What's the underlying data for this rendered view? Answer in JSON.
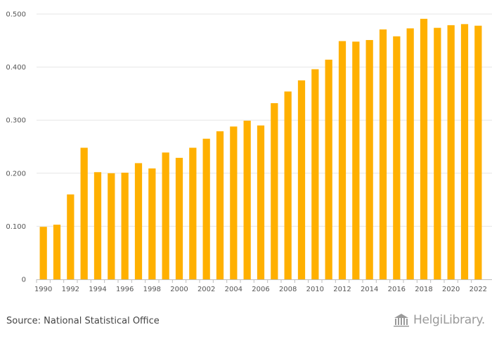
{
  "chart_data": {
    "type": "bar",
    "categories": [
      "1990",
      "1991",
      "1992",
      "1993",
      "1994",
      "1995",
      "1996",
      "1997",
      "1998",
      "1999",
      "2000",
      "2001",
      "2002",
      "2003",
      "2004",
      "2005",
      "2006",
      "2007",
      "2008",
      "2009",
      "2010",
      "2011",
      "2012",
      "2013",
      "2014",
      "2015",
      "2016",
      "2017",
      "2018",
      "2019",
      "2020",
      "2021",
      "2022"
    ],
    "x_tick_labels": [
      "1990",
      "1992",
      "1994",
      "1996",
      "1998",
      "2000",
      "2002",
      "2004",
      "2006",
      "2008",
      "2010",
      "2012",
      "2014",
      "2016",
      "2018",
      "2020",
      "2022"
    ],
    "values": [
      0.099,
      0.103,
      0.16,
      0.248,
      0.202,
      0.2,
      0.201,
      0.219,
      0.209,
      0.239,
      0.229,
      0.248,
      0.265,
      0.279,
      0.288,
      0.299,
      0.29,
      0.332,
      0.354,
      0.375,
      0.396,
      0.414,
      0.449,
      0.448,
      0.451,
      0.471,
      0.458,
      0.473,
      0.491,
      0.474,
      0.479,
      0.481,
      0.478
    ],
    "y_ticks": [
      0,
      0.1,
      0.2,
      0.3,
      0.4,
      0.5
    ],
    "y_tick_labels": [
      "0",
      "0.100",
      "0.200",
      "0.300",
      "0.400",
      "0.500"
    ],
    "ylim": [
      0,
      0.5
    ],
    "grid": true,
    "bar_color": "#FFB000"
  },
  "footer": {
    "source": "Source: National Statistical Office",
    "brand": "HelgiLibrary."
  },
  "colors": {
    "grid": "#e6e6e6",
    "axis": "#bdbdbd",
    "brand": "#9a9a9a"
  },
  "icons": {
    "brand": "library-building-icon"
  }
}
